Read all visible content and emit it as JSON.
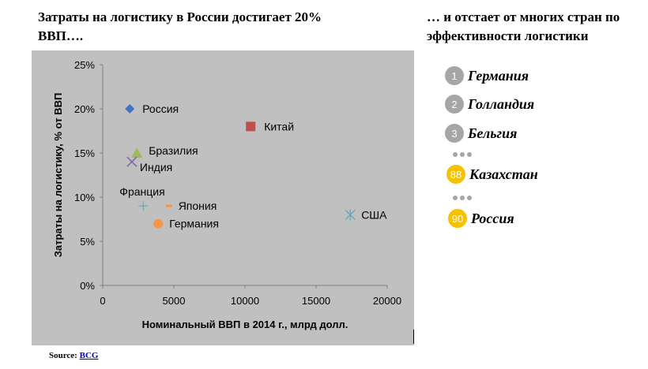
{
  "header": {
    "left_title": "Затраты на логистику в России достигает 20% ВВП….",
    "right_title": "… и отстает от многих стран по эффективности логистики"
  },
  "chart_data": {
    "type": "scatter",
    "title": "",
    "xlabel": "Номинальный ВВП в 2014 г., млрд долл.",
    "ylabel": "Затраты на логистику, % от ВВП",
    "xlim": [
      0,
      20000
    ],
    "ylim": [
      0,
      25
    ],
    "x_ticks": [
      "0",
      "5000",
      "10000",
      "15000",
      "20000"
    ],
    "y_ticks": [
      "0%",
      "5%",
      "10%",
      "15%",
      "20%",
      "25%"
    ],
    "grid": false,
    "points": [
      {
        "label": "Россия",
        "x": 1900,
        "y": 20,
        "marker": "diamond",
        "color": "#4472c4"
      },
      {
        "label": "Китай",
        "x": 10400,
        "y": 18,
        "marker": "square",
        "color": "#c0504d"
      },
      {
        "label": "Бразилия",
        "x": 2400,
        "y": 15,
        "marker": "triangle",
        "color": "#9bbb59"
      },
      {
        "label": "Индия",
        "x": 2050,
        "y": 14,
        "marker": "x",
        "color": "#8064a2"
      },
      {
        "label": "Франция",
        "x": 2850,
        "y": 9,
        "marker": "plus",
        "color": "#4bacc6"
      },
      {
        "label": "Япония",
        "x": 4650,
        "y": 9,
        "marker": "dash",
        "color": "#f79646"
      },
      {
        "label": "Германия",
        "x": 3900,
        "y": 7,
        "marker": "circle",
        "color": "#f79646"
      },
      {
        "label": "США",
        "x": 17400,
        "y": 8,
        "marker": "asterisk",
        "color": "#4bacc6"
      }
    ]
  },
  "ranking": {
    "items": [
      {
        "rank": "1",
        "country": "Германия",
        "color": "grey"
      },
      {
        "rank": "2",
        "country": "Голландия",
        "color": "grey"
      },
      {
        "rank": "3",
        "country": "Бельгия",
        "color": "grey"
      },
      {
        "rank": "88",
        "country": "Казахстан",
        "color": "gold"
      },
      {
        "rank": "90",
        "country": "Россия",
        "color": "gold"
      }
    ]
  },
  "source": {
    "prefix": "Source: ",
    "link": "BCG"
  }
}
